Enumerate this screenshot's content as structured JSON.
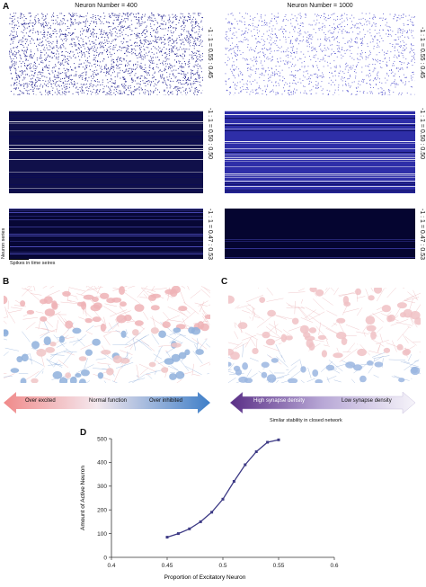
{
  "panel_a": {
    "letter": "A",
    "titles": [
      "Neuron Number = 400",
      "Neuron Number = 1000"
    ],
    "ratios": [
      "-1 : 1 = 0.55 : 0.45",
      "-1 : 1 = 0.50 : 0.50",
      "-1 : 1 = 0.47 : 0.53"
    ],
    "ylabel": "Neuron series",
    "xlabel": "Spikes in time seires"
  },
  "panel_b": {
    "letter": "B",
    "labels": [
      "Over excited",
      "Normal function",
      "Over inhibited"
    ]
  },
  "panel_c": {
    "letter": "C",
    "labels": [
      "High synapse density",
      "Low synapse density"
    ],
    "caption": "Similar stability in closed network"
  },
  "panel_d": {
    "letter": "D"
  },
  "chart_data": {
    "type": "line",
    "title": "",
    "xlabel": "Proportion of Excitatory Neuron",
    "ylabel": "Amount of Active Neuron",
    "xlim": [
      0.4,
      0.6
    ],
    "ylim": [
      0,
      500
    ],
    "xticks": [
      "0.4",
      "0.45",
      "0.5",
      "0.55",
      "0.6"
    ],
    "yticks": [
      "0",
      "100",
      "200",
      "300",
      "400",
      "500"
    ],
    "x": [
      0.45,
      0.46,
      0.47,
      0.48,
      0.49,
      0.5,
      0.51,
      0.52,
      0.53,
      0.54,
      0.55
    ],
    "values": [
      85,
      100,
      120,
      150,
      190,
      245,
      320,
      390,
      445,
      485,
      495
    ],
    "grid": false,
    "color": "#3d3a85"
  }
}
